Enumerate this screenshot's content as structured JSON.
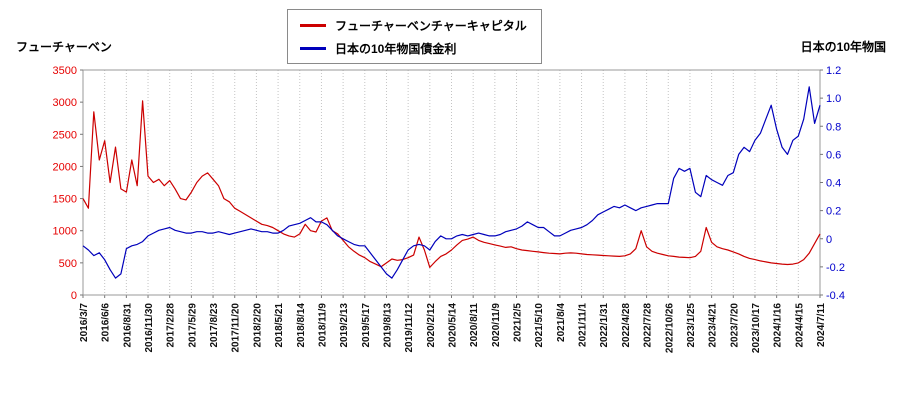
{
  "page": {
    "background": "#ffffff"
  },
  "axis_titles": {
    "left": "フューチャーベン",
    "right": "日本の10年物国"
  },
  "legend": {
    "items": [
      {
        "label": "フューチャーベンチャーキャピタル",
        "color": "#cc0000"
      },
      {
        "label": "日本の10年物国債金利",
        "color": "#0000bb"
      }
    ]
  },
  "chart_data": {
    "type": "line",
    "title": "",
    "grid": "vertical-dotted",
    "legend_position": "top-center",
    "x_tick_labels": [
      "2016/3/7",
      "2016/6/6",
      "2016/8/31",
      "2016/11/30",
      "2017/2/28",
      "2017/5/29",
      "2017/8/23",
      "2017/11/20",
      "2018/2/20",
      "2018/5/21",
      "2018/8/14",
      "2018/11/9",
      "2019/2/13",
      "2019/5/17",
      "2019/8/13",
      "2019/11/12",
      "2020/2/12",
      "2020/5/14",
      "2020/8/11",
      "2020/11/9",
      "2021/2/5",
      "2021/5/10",
      "2021/8/4",
      "2021/11/1",
      "2022/1/31",
      "2022/4/28",
      "2022/7/28",
      "2022/10/26",
      "2023/1/25",
      "2023/4/21",
      "2023/7/20",
      "2023/10/17",
      "2024/1/16",
      "2024/4/15",
      "2024/7/11"
    ],
    "left_axis": {
      "label": "フューチャーベン",
      "color": "#e60000",
      "min": 0,
      "max": 3500,
      "ticks": [
        "3500",
        "3000",
        "2500",
        "2000",
        "1500",
        "1000",
        "500",
        "0"
      ]
    },
    "right_axis": {
      "label": "日本の10年物国",
      "color": "#0000cc",
      "min": -0.4,
      "max": 1.2,
      "ticks": [
        "1.2",
        "1.0",
        "0.8",
        "0.6",
        "0.4",
        "0.2",
        "0",
        "-0.2",
        "-0.4"
      ]
    },
    "series": [
      {
        "name": "フューチャーベンチャーキャピタル",
        "axis": "left",
        "color": "#cc0000",
        "values": [
          1500,
          1350,
          2850,
          2100,
          2400,
          1750,
          2300,
          1650,
          1600,
          2100,
          1700,
          3020,
          1850,
          1750,
          1800,
          1700,
          1780,
          1650,
          1500,
          1480,
          1600,
          1750,
          1850,
          1900,
          1800,
          1700,
          1500,
          1450,
          1350,
          1300,
          1250,
          1200,
          1150,
          1100,
          1080,
          1050,
          1000,
          950,
          920,
          900,
          950,
          1100,
          1000,
          980,
          1150,
          1200,
          1000,
          950,
          850,
          750,
          680,
          620,
          580,
          520,
          480,
          440,
          500,
          560,
          540,
          550,
          580,
          620,
          900,
          700,
          430,
          520,
          600,
          640,
          700,
          780,
          850,
          870,
          900,
          850,
          820,
          800,
          780,
          760,
          740,
          750,
          720,
          700,
          690,
          680,
          670,
          660,
          650,
          645,
          640,
          650,
          655,
          650,
          640,
          630,
          625,
          620,
          615,
          610,
          605,
          600,
          610,
          640,
          720,
          1000,
          750,
          680,
          650,
          630,
          610,
          600,
          590,
          585,
          580,
          600,
          680,
          1050,
          820,
          750,
          720,
          700,
          670,
          640,
          600,
          570,
          550,
          530,
          515,
          500,
          490,
          480,
          475,
          480,
          500,
          550,
          650,
          800,
          950
        ]
      },
      {
        "name": "日本の10年物国債金利",
        "axis": "right",
        "color": "#0000bb",
        "values": [
          -0.05,
          -0.08,
          -0.12,
          -0.1,
          -0.15,
          -0.22,
          -0.28,
          -0.25,
          -0.07,
          -0.05,
          -0.04,
          -0.02,
          0.02,
          0.04,
          0.06,
          0.07,
          0.08,
          0.06,
          0.05,
          0.04,
          0.04,
          0.05,
          0.05,
          0.04,
          0.04,
          0.05,
          0.04,
          0.03,
          0.04,
          0.05,
          0.06,
          0.07,
          0.06,
          0.05,
          0.05,
          0.04,
          0.04,
          0.06,
          0.09,
          0.1,
          0.11,
          0.13,
          0.15,
          0.12,
          0.12,
          0.1,
          0.06,
          0.02,
          0.0,
          -0.02,
          -0.04,
          -0.05,
          -0.05,
          -0.1,
          -0.15,
          -0.2,
          -0.25,
          -0.28,
          -0.22,
          -0.15,
          -0.08,
          -0.05,
          -0.04,
          -0.05,
          -0.08,
          -0.02,
          0.02,
          0.0,
          0.0,
          0.02,
          0.03,
          0.02,
          0.03,
          0.04,
          0.03,
          0.02,
          0.02,
          0.03,
          0.05,
          0.06,
          0.07,
          0.09,
          0.12,
          0.1,
          0.08,
          0.08,
          0.05,
          0.02,
          0.02,
          0.04,
          0.06,
          0.07,
          0.08,
          0.1,
          0.13,
          0.17,
          0.19,
          0.21,
          0.23,
          0.22,
          0.24,
          0.22,
          0.2,
          0.22,
          0.23,
          0.24,
          0.25,
          0.25,
          0.25,
          0.43,
          0.5,
          0.48,
          0.5,
          0.33,
          0.3,
          0.45,
          0.42,
          0.4,
          0.38,
          0.45,
          0.47,
          0.6,
          0.65,
          0.62,
          0.7,
          0.75,
          0.85,
          0.95,
          0.78,
          0.65,
          0.6,
          0.7,
          0.73,
          0.85,
          1.08,
          0.82,
          0.95
        ]
      }
    ]
  }
}
